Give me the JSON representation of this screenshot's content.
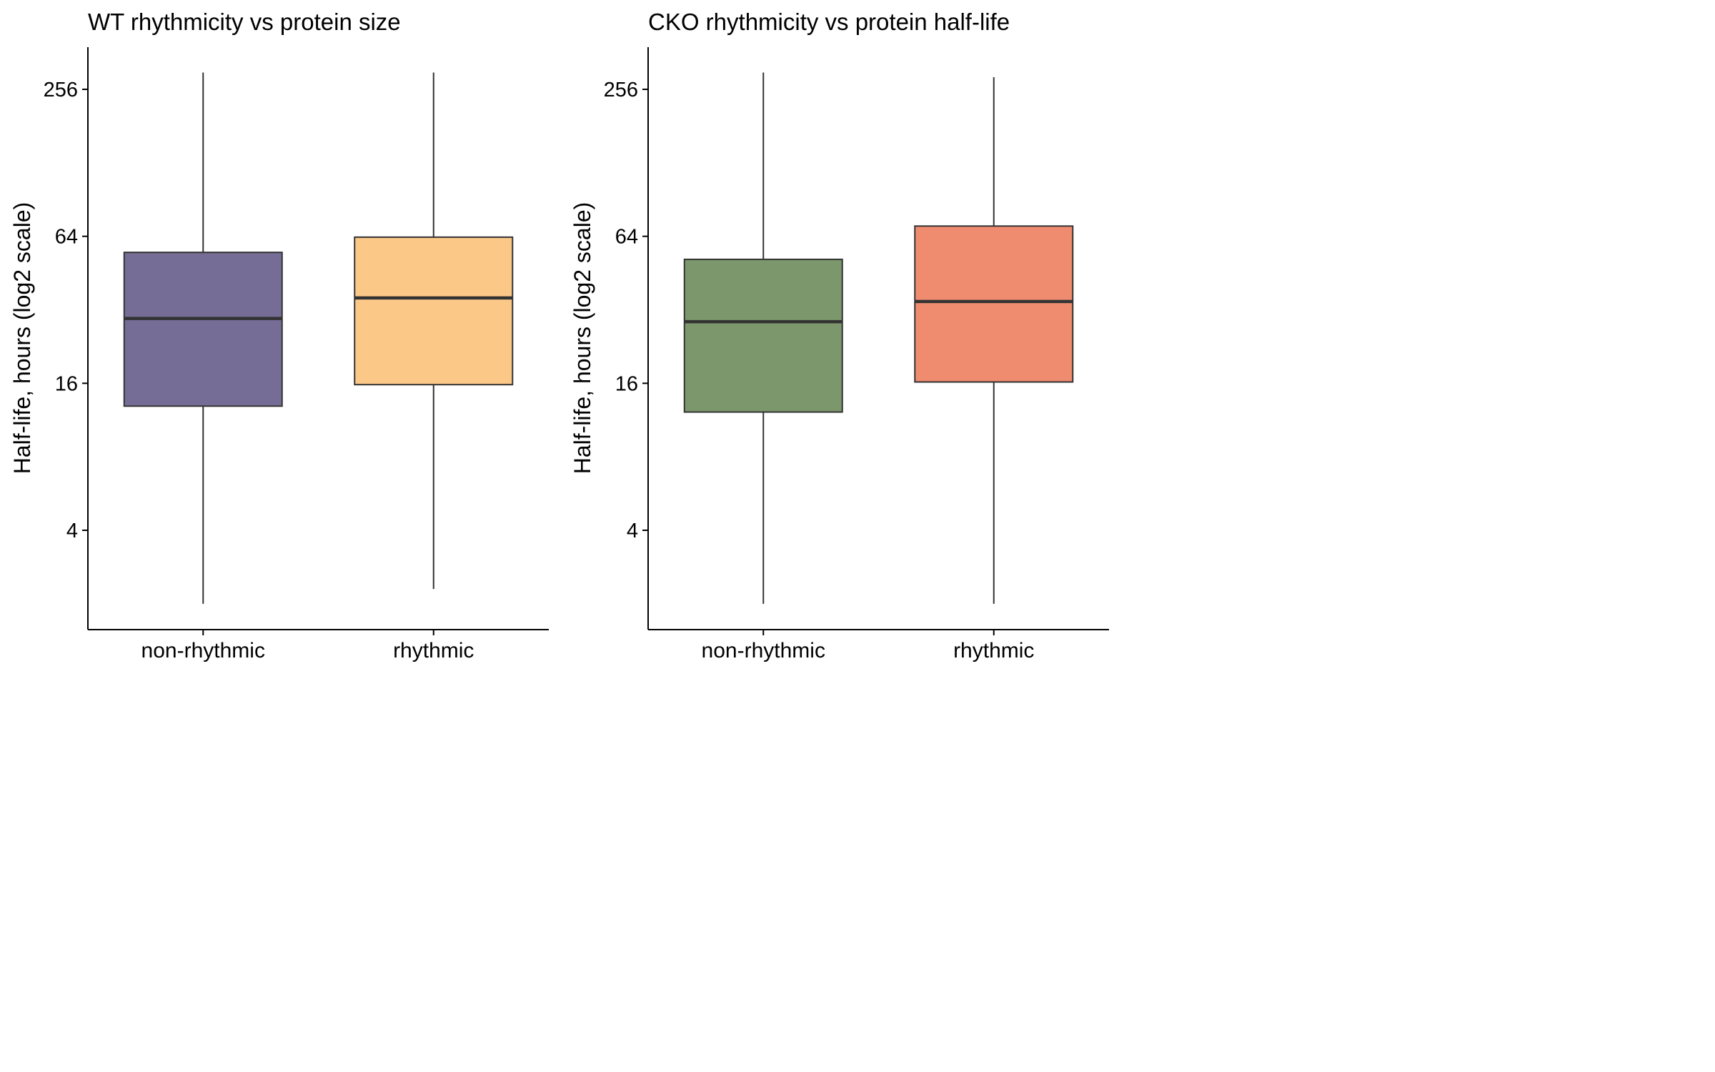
{
  "chart_data": [
    {
      "type": "boxplot",
      "title": "WT rhythmicity vs protein size",
      "ylabel": "Half-life, hours (log2 scale)",
      "xlabel": "",
      "y_scale": "log2",
      "yticks": [
        4,
        16,
        64,
        256
      ],
      "ylim": [
        1.6,
        340
      ],
      "categories": [
        "non-rhythmic",
        "rhythmic"
      ],
      "boxes": [
        {
          "category": "non-rhythmic",
          "whisker_low": 2.0,
          "q1": 12.9,
          "median": 29.5,
          "q3": 55.0,
          "whisker_high": 300,
          "fill": "#766d96"
        },
        {
          "category": "rhythmic",
          "whisker_low": 2.3,
          "q1": 15.8,
          "median": 35.8,
          "q3": 63.5,
          "whisker_high": 300,
          "fill": "#fbc888"
        }
      ]
    },
    {
      "type": "boxplot",
      "title": "CKO rhythmicity vs protein half-life",
      "ylabel": "Half-life, hours (log2 scale)",
      "xlabel": "",
      "y_scale": "log2",
      "yticks": [
        4,
        16,
        64,
        256
      ],
      "ylim": [
        1.6,
        340
      ],
      "categories": [
        "non-rhythmic",
        "rhythmic"
      ],
      "boxes": [
        {
          "category": "non-rhythmic",
          "whisker_low": 2.0,
          "q1": 12.2,
          "median": 28.6,
          "q3": 51.5,
          "whisker_high": 300,
          "fill": "#7d976c"
        },
        {
          "category": "rhythmic",
          "whisker_low": 2.0,
          "q1": 16.2,
          "median": 34.6,
          "q3": 70.5,
          "whisker_high": 287,
          "fill": "#ef8c70"
        }
      ]
    }
  ]
}
